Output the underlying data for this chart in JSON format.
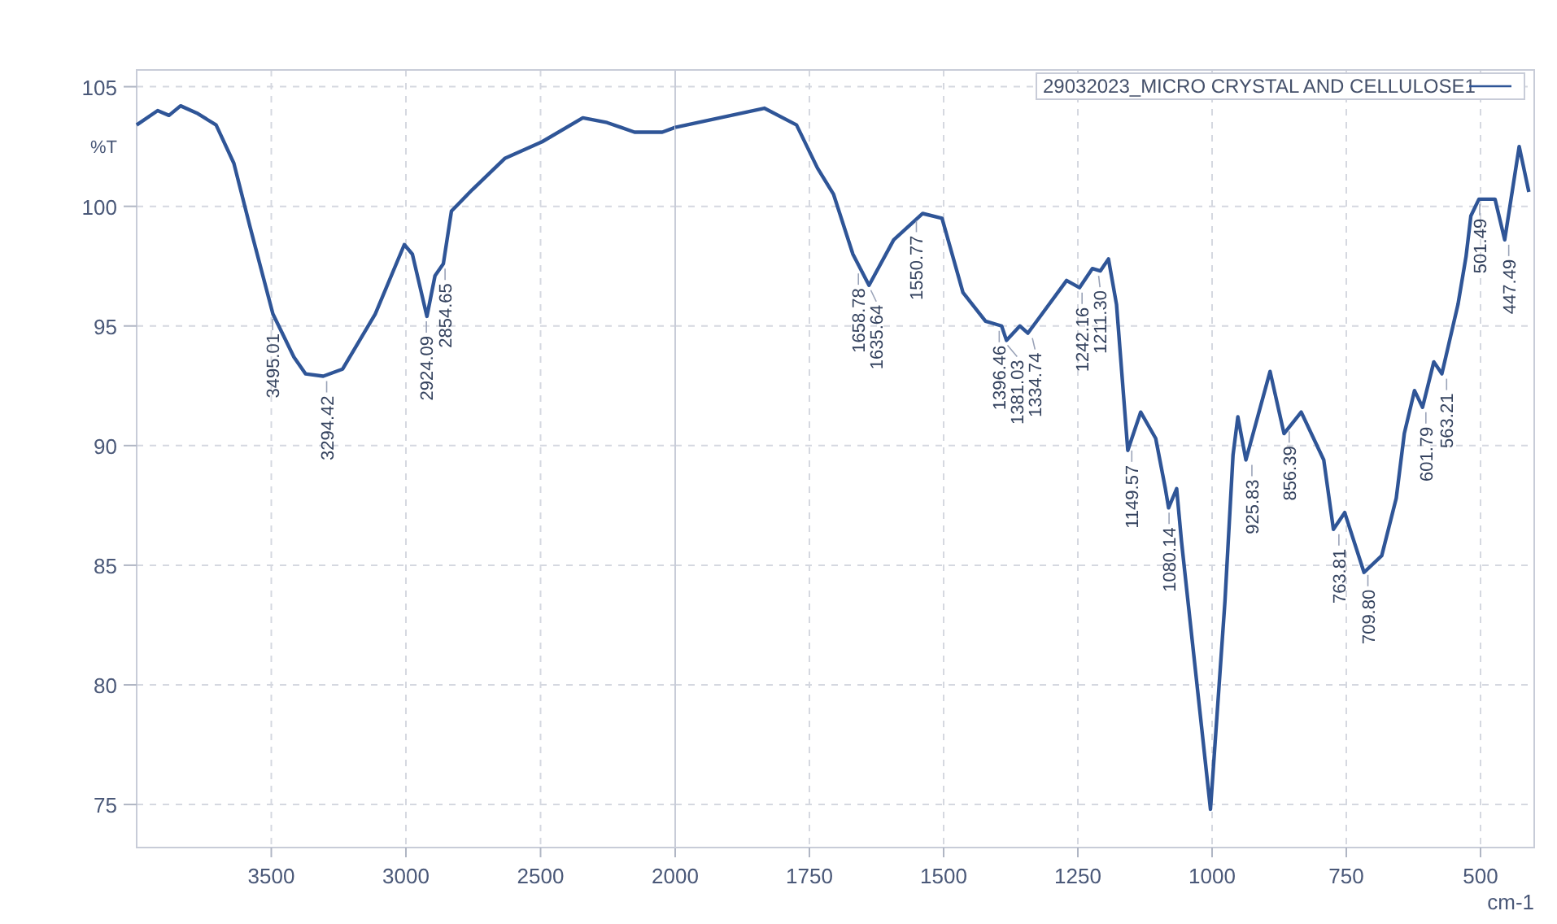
{
  "chart_data": [
    {
      "type": "line",
      "ylabel": "%T",
      "xlim": [
        4000,
        2000
      ],
      "xticks": [
        3500,
        3000,
        2500,
        2000
      ],
      "ylim": [
        73.2,
        105.7
      ],
      "yticks": [
        75,
        80,
        85,
        90,
        95,
        100,
        105
      ],
      "grid": true,
      "x": [
        4000,
        3922,
        3880,
        3837,
        3777,
        3705,
        3639,
        3578,
        3494,
        3416,
        3373,
        3307,
        3235,
        3114,
        3006,
        2976,
        2922,
        2892,
        2861,
        2831,
        2753,
        2633,
        2494,
        2343,
        2253,
        2151,
        2048,
        2000
      ],
      "series": [
        {
          "color": "#2f5597",
          "values": [
            103.4,
            104.0,
            103.8,
            104.2,
            103.9,
            103.4,
            101.8,
            99.1,
            95.5,
            93.7,
            93.0,
            92.9,
            93.2,
            95.5,
            98.4,
            98.0,
            95.4,
            97.1,
            97.6,
            99.8,
            100.7,
            102.0,
            102.7,
            103.7,
            103.5,
            103.1,
            103.1,
            103.3
          ]
        }
      ],
      "annotations": [
        {
          "text": "3495.01",
          "x": 3495.01,
          "y": 95.5
        },
        {
          "text": "3294.42",
          "x": 3294.42,
          "y": 92.9
        },
        {
          "text": "2924.09",
          "x": 2924.09,
          "y": 95.4
        },
        {
          "text": "2854.65",
          "x": 2854.65,
          "y": 97.6
        }
      ]
    },
    {
      "type": "line",
      "xlabel": "cm-1",
      "xlim": [
        2000,
        400
      ],
      "xticks": [
        1750,
        1500,
        1250,
        1000,
        750,
        500
      ],
      "ylim": [
        73.2,
        105.7
      ],
      "yticks": [
        75,
        80,
        85,
        90,
        95,
        100,
        105
      ],
      "grid": true,
      "tick_labels": "x",
      "legend": "top right",
      "x": [
        2000,
        1834,
        1774,
        1735,
        1705,
        1669,
        1639,
        1593,
        1539,
        1503,
        1464,
        1422,
        1392,
        1383,
        1358,
        1343,
        1271,
        1247,
        1223,
        1208,
        1193,
        1178,
        1157,
        1133,
        1105,
        1087,
        1081,
        1066,
        1057,
        1003,
        976,
        961,
        952,
        937,
        892,
        866,
        834,
        792,
        774,
        753,
        717,
        684,
        657,
        642,
        623,
        608,
        587,
        572,
        542,
        527,
        518,
        503,
        473,
        455,
        428,
        410
      ],
      "series": [
        {
          "name": "29032023_MICRO CRYSTAL AND CELLULOSE1",
          "color": "#2f5597",
          "values": [
            103.3,
            104.1,
            103.4,
            101.6,
            100.5,
            98.0,
            96.7,
            98.6,
            99.7,
            99.5,
            96.4,
            95.2,
            95.0,
            94.4,
            95.0,
            94.7,
            96.9,
            96.6,
            97.4,
            97.3,
            97.8,
            95.9,
            89.8,
            91.4,
            90.3,
            88.2,
            87.4,
            88.2,
            86.0,
            74.8,
            83.5,
            89.6,
            91.2,
            89.4,
            93.1,
            90.5,
            91.4,
            89.4,
            86.5,
            87.2,
            84.7,
            85.4,
            87.8,
            90.5,
            92.3,
            91.6,
            93.5,
            93.0,
            95.9,
            97.9,
            99.6,
            100.3,
            100.3,
            98.6,
            102.5,
            100.6
          ]
        }
      ],
      "annotations": [
        {
          "text": "1658.78",
          "x": 1658.78,
          "y": 97.4
        },
        {
          "text": "1635.64",
          "x": 1635.64,
          "y": 96.7
        },
        {
          "text": "1550.77",
          "x": 1550.77,
          "y": 99.6
        },
        {
          "text": "1396.46",
          "x": 1396.46,
          "y": 95.0
        },
        {
          "text": "1381.03",
          "x": 1381.03,
          "y": 94.4
        },
        {
          "text": "1334.74",
          "x": 1334.74,
          "y": 94.7
        },
        {
          "text": "1242.16",
          "x": 1242.16,
          "y": 96.6
        },
        {
          "text": "1211.30",
          "x": 1211.3,
          "y": 97.3
        },
        {
          "text": "1149.57",
          "x": 1149.57,
          "y": 90.0
        },
        {
          "text": "1080.14",
          "x": 1080.14,
          "y": 87.4
        },
        {
          "text": "925.83",
          "x": 925.83,
          "y": 89.4
        },
        {
          "text": "856.39",
          "x": 856.39,
          "y": 90.8
        },
        {
          "text": "763.81",
          "x": 763.81,
          "y": 86.5
        },
        {
          "text": "709.80",
          "x": 709.8,
          "y": 84.8
        },
        {
          "text": "601.79",
          "x": 601.79,
          "y": 91.6
        },
        {
          "text": "563.21",
          "x": 563.21,
          "y": 93.0
        },
        {
          "text": "501.49",
          "x": 501.49,
          "y": 100.3
        },
        {
          "text": "447.49",
          "x": 447.49,
          "y": 98.6
        }
      ]
    }
  ]
}
